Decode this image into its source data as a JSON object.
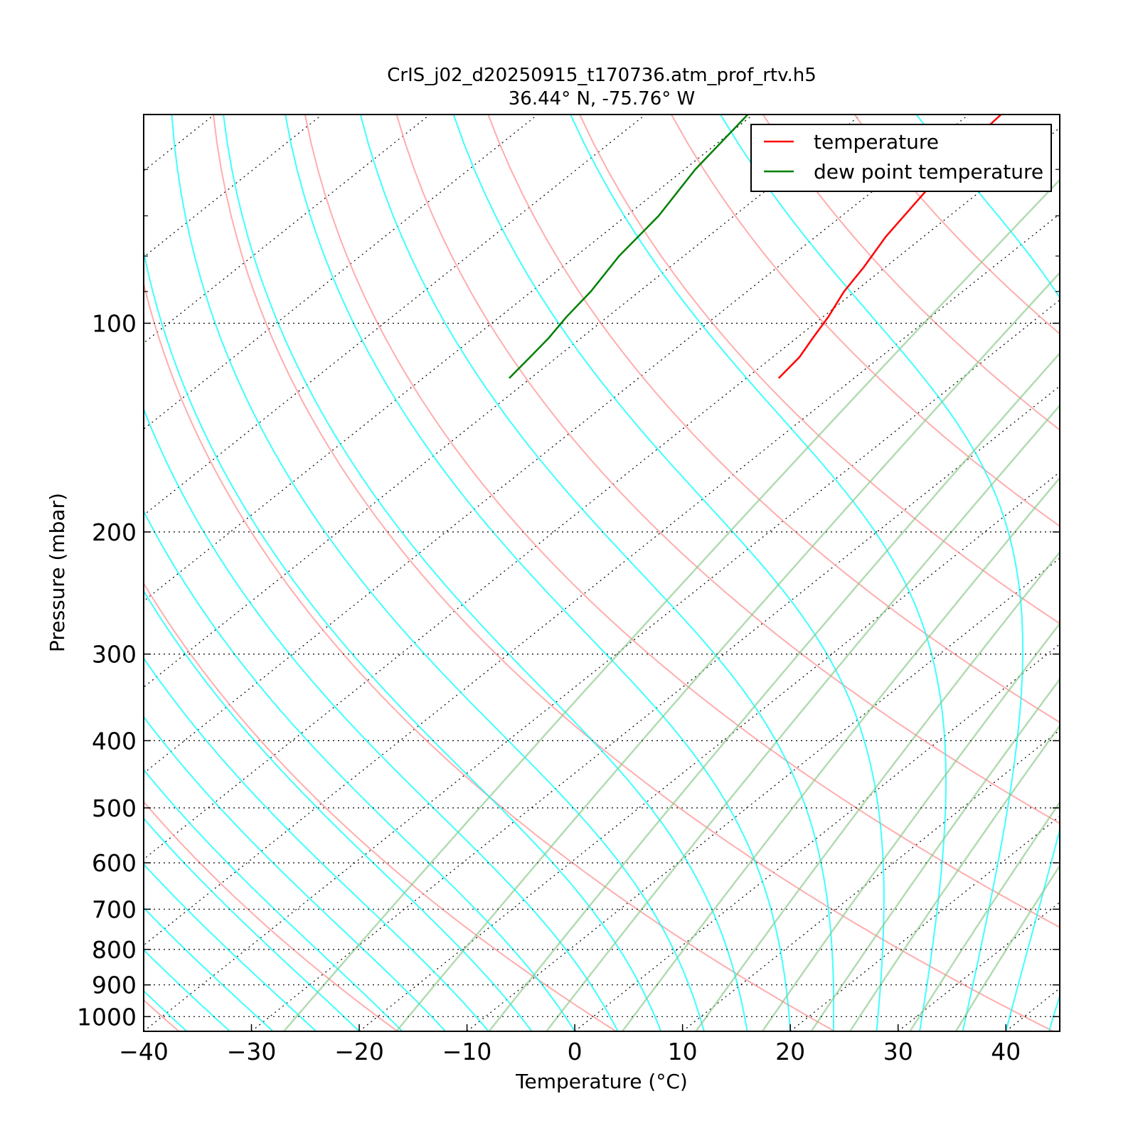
{
  "chart_data": {
    "type": "line",
    "subtype": "skew-T log-P diagram",
    "title": "CrIS_j02_d20250915_t170736.atm_prof_rtv.h5",
    "subtitle": "36.44° N, -75.76° W",
    "xlabel": "Temperature (°C)",
    "ylabel": "Pressure (mbar)",
    "xlim": [
      -40,
      45
    ],
    "ylim": [
      1050,
      50
    ],
    "y_scale": "log",
    "x_ticks": [
      -40,
      -30,
      -20,
      -10,
      0,
      10,
      20,
      30,
      40
    ],
    "x_tick_labels": [
      "−40",
      "−30",
      "−20",
      "−10",
      "0",
      "10",
      "20",
      "30",
      "40"
    ],
    "y_ticks": [
      100,
      200,
      300,
      400,
      500,
      600,
      700,
      800,
      900,
      1000
    ],
    "y_tick_labels": [
      "100",
      "200",
      "300",
      "400",
      "500",
      "600",
      "700",
      "800",
      "900",
      "1000"
    ],
    "y_minor_ticks": [
      60,
      70,
      80,
      90
    ],
    "grid": true,
    "legend_position": "top-right",
    "series": [
      {
        "name": "temperature",
        "color": "#ff0000",
        "points": [
          {
            "p": 120,
            "t": -57.0
          },
          {
            "p": 112,
            "t": -57.5
          },
          {
            "p": 105,
            "t": -58.5
          },
          {
            "p": 98,
            "t": -59.5
          },
          {
            "p": 90,
            "t": -61.0
          },
          {
            "p": 83,
            "t": -62.0
          },
          {
            "p": 75,
            "t": -63.5
          },
          {
            "p": 65,
            "t": -65.0
          },
          {
            "p": 56,
            "t": -66.5
          },
          {
            "p": 50,
            "t": -67.0
          }
        ]
      },
      {
        "name": "dew point temperature",
        "color": "#008000",
        "points": [
          {
            "p": 120,
            "t": -82.0
          },
          {
            "p": 112,
            "t": -82.5
          },
          {
            "p": 105,
            "t": -83.0
          },
          {
            "p": 98,
            "t": -83.8
          },
          {
            "p": 90,
            "t": -84.5
          },
          {
            "p": 80,
            "t": -86.0
          },
          {
            "p": 70,
            "t": -87.0
          },
          {
            "p": 60,
            "t": -89.0
          },
          {
            "p": 50,
            "t": -90.5
          }
        ]
      }
    ],
    "background_lines": {
      "isotherm_color": "#000000",
      "dry_adiabat_color": "#ff9999",
      "moist_adiabat_color": "#00ffff",
      "mixing_ratio_color": "#88c888"
    }
  }
}
